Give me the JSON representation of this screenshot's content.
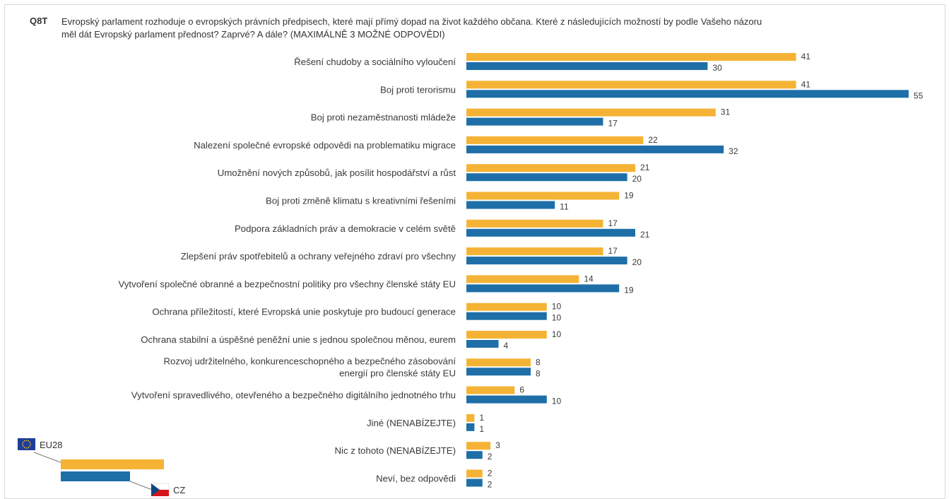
{
  "question": {
    "id": "Q8T",
    "line1": "Evropský parlament rozhoduje o evropských právních předpisech, které mají přímý dopad na život každého občana. Které z následujících možností by podle Vašeho názoru",
    "line2": "měl dát Evropský parlament přednost? Zaprvé? A dále? (MAXIMÁLNĚ 3 MOŽNÉ ODPOVĚDI)"
  },
  "chart_data": {
    "type": "bar",
    "orientation": "horizontal",
    "title": "",
    "xlabel": "",
    "ylabel": "",
    "categories": [
      [
        "Řešení chudoby a sociálního vyloučení"
      ],
      [
        "Boj proti terorismu"
      ],
      [
        "Boj proti nezaměstnanosti mládeže"
      ],
      [
        "Nalezení společné evropské odpovědi na problematiku migrace"
      ],
      [
        "Umožnění nových způsobů, jak posílit hospodářství a růst"
      ],
      [
        "Boj proti změně klimatu s kreativními řešeními"
      ],
      [
        "Podpora základních práv a demokracie v celém světě"
      ],
      [
        "Zlepšení práv spotřebitelů a ochrany veřejného zdraví pro všechny"
      ],
      [
        "Vytvoření společné obranné a bezpečnostní politiky pro všechny členské státy EU"
      ],
      [
        "Ochrana příležitostí, které Evropská unie poskytuje pro budoucí generace"
      ],
      [
        "Ochrana stabilní a úspěšné peněžní unie s jednou společnou měnou, eurem"
      ],
      [
        "Rozvoj udržitelného, konkurenceschopného a bezpečného zásobování",
        "energií pro členské státy EU"
      ],
      [
        "Vytvoření spravedlivého, otevřeného a bezpečného digitálního jednotného trhu"
      ],
      [
        "Jiné (NENABÍZEJTE)"
      ],
      [
        "Nic z tohoto (NENABÍZEJTE)"
      ],
      [
        "Neví, bez odpovědi"
      ]
    ],
    "series": [
      {
        "name": "EU28",
        "color": "#f5b335",
        "values": [
          41,
          41,
          31,
          22,
          21,
          19,
          17,
          17,
          14,
          10,
          10,
          8,
          6,
          1,
          3,
          2
        ]
      },
      {
        "name": "CZ",
        "color": "#1e6fa8",
        "values": [
          30,
          55,
          17,
          32,
          20,
          11,
          21,
          20,
          19,
          10,
          4,
          8,
          10,
          1,
          2,
          2
        ]
      }
    ],
    "xlim": [
      0,
      55
    ],
    "grid": false,
    "legend_position": "bottom-left"
  },
  "legend_icons": {
    "eu": "eu-flag-icon",
    "cz": "czech-flag-icon"
  }
}
